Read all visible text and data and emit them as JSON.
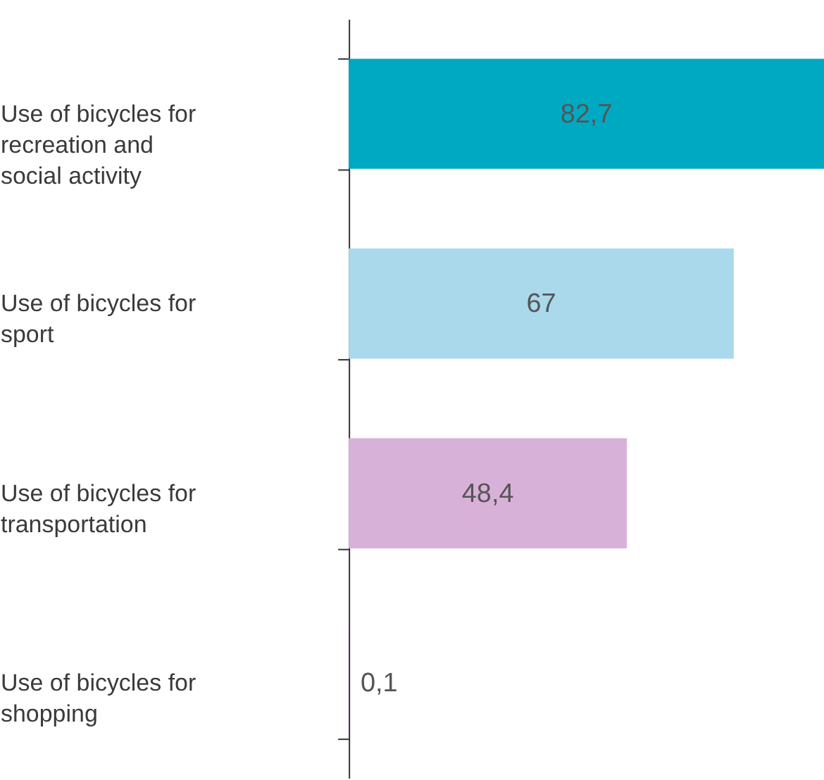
{
  "chart_data": {
    "type": "bar",
    "orientation": "horizontal",
    "categories": [
      "Use of bicycles for recreation and social activity",
      "Use of bicycles for sport",
      "Use of bicycles for transportation",
      "Use of bicycles for shopping"
    ],
    "values": [
      82.7,
      67,
      48.4,
      0.1
    ],
    "value_labels": [
      "82,7",
      "67",
      "48,4",
      "0,1"
    ],
    "colors": [
      "#00a9c2",
      "#a9d9ea",
      "#d8b1d9",
      "#7b2a7d"
    ],
    "grid": false
  }
}
